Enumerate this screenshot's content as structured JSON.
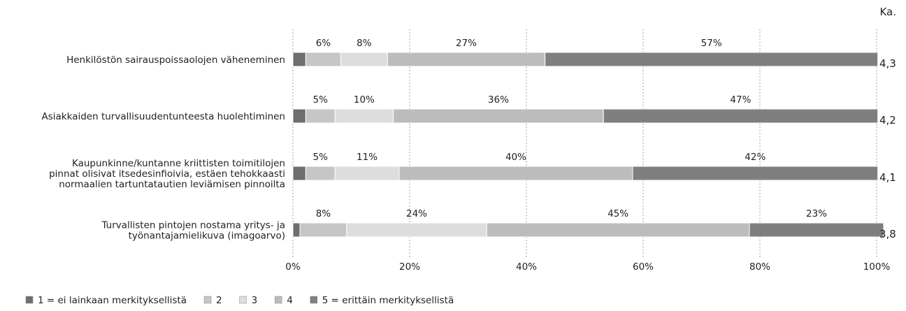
{
  "chart_data": {
    "type": "bar",
    "orientation": "horizontal-stacked-100",
    "avg_header": "Ka.",
    "categories": [
      [
        "Henkilöstön sairauspoissaolojen väheneminen"
      ],
      [
        "Asiakkaiden turvallisuudentunteesta huolehtiminen"
      ],
      [
        "Kaupunkinne/kuntanne kriittisten toimitilojen",
        "pinnat olisivat itsedesinfioivia, estäen tehokkaasti",
        "normaalien tartuntatautien leviämisen pinnoilta"
      ],
      [
        "Turvallisten pintojen nostama yritys- ja",
        "työnantajamielikuva (imagoarvo)"
      ]
    ],
    "series": [
      {
        "name": "1 = ei lainkaan merkityksellistä",
        "color": "#6e6e6e",
        "values": [
          2.2,
          2.2,
          2.2,
          1.2
        ]
      },
      {
        "name": "2",
        "color": "#c6c6c6",
        "values": [
          6,
          5,
          5,
          8
        ]
      },
      {
        "name": "3",
        "color": "#dddddd",
        "values": [
          8,
          10,
          11,
          24
        ]
      },
      {
        "name": "4",
        "color": "#bcbcbc",
        "values": [
          27,
          36,
          40,
          45
        ]
      },
      {
        "name": "5 = erittäin merkityksellistä",
        "color": "#7f7f7f",
        "values": [
          57,
          47,
          42,
          23
        ]
      }
    ],
    "value_labels": [
      [
        "",
        "6%",
        "8%",
        "27%",
        "57%"
      ],
      [
        "",
        "5%",
        "10%",
        "36%",
        "47%"
      ],
      [
        "",
        "5%",
        "11%",
        "40%",
        "42%"
      ],
      [
        "",
        "8%",
        "24%",
        "45%",
        "23%"
      ]
    ],
    "averages": [
      "4,3",
      "4,2",
      "4,1",
      "3,8"
    ],
    "xlim": [
      0,
      100
    ],
    "x_ticks": [
      "0%",
      "20%",
      "40%",
      "60%",
      "80%",
      "100%"
    ],
    "grid": true,
    "legend_position": "bottom-left"
  }
}
